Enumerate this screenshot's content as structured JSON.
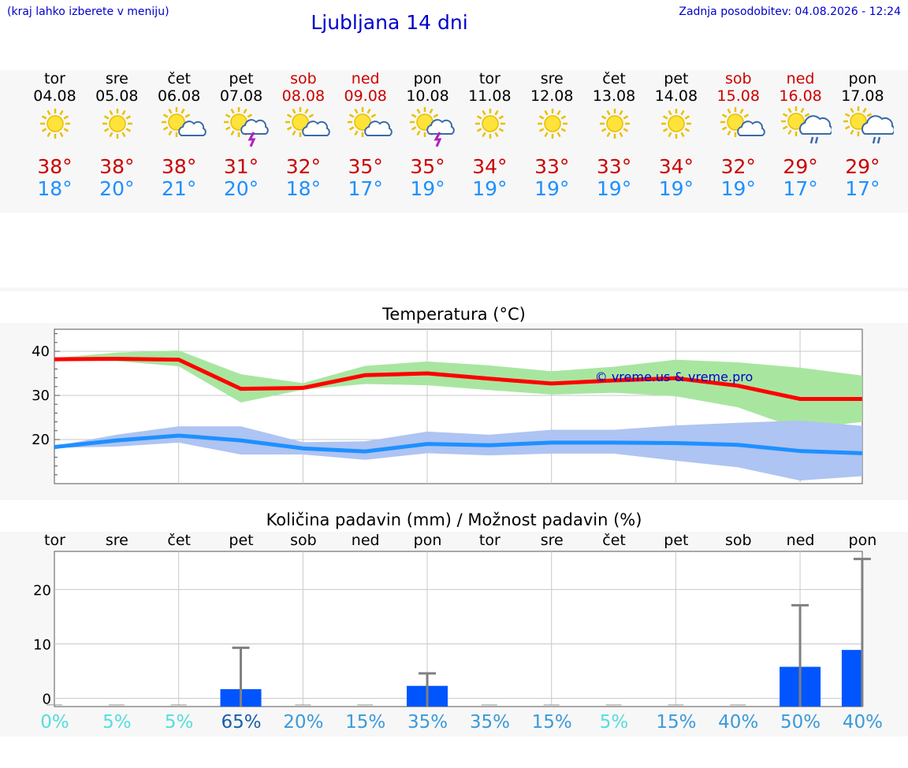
{
  "header": {
    "menu_hint": "(kraj lahko izberete v meniju)",
    "title": "Ljubljana 14 dni",
    "updated": "Zadnja posodobitev: 04.08.2026 - 12:24"
  },
  "days": [
    {
      "name": "tor",
      "date": "04.08",
      "weekend": false,
      "icon": "sun-icon",
      "max": "38°",
      "min": "18°"
    },
    {
      "name": "sre",
      "date": "05.08",
      "weekend": false,
      "icon": "sun-icon",
      "max": "38°",
      "min": "20°"
    },
    {
      "name": "čet",
      "date": "06.08",
      "weekend": false,
      "icon": "sun-cloud-icon",
      "max": "38°",
      "min": "21°"
    },
    {
      "name": "pet",
      "date": "07.08",
      "weekend": false,
      "icon": "sun-storm-icon",
      "max": "31°",
      "min": "20°"
    },
    {
      "name": "sob",
      "date": "08.08",
      "weekend": true,
      "icon": "sun-cloud-icon",
      "max": "32°",
      "min": "18°"
    },
    {
      "name": "ned",
      "date": "09.08",
      "weekend": true,
      "icon": "sun-cloud-icon",
      "max": "35°",
      "min": "17°"
    },
    {
      "name": "pon",
      "date": "10.08",
      "weekend": false,
      "icon": "sun-storm-icon",
      "max": "35°",
      "min": "19°"
    },
    {
      "name": "tor",
      "date": "11.08",
      "weekend": false,
      "icon": "sun-icon",
      "max": "34°",
      "min": "19°"
    },
    {
      "name": "sre",
      "date": "12.08",
      "weekend": false,
      "icon": "sun-icon",
      "max": "33°",
      "min": "19°"
    },
    {
      "name": "čet",
      "date": "13.08",
      "weekend": false,
      "icon": "sun-icon",
      "max": "33°",
      "min": "19°"
    },
    {
      "name": "pet",
      "date": "14.08",
      "weekend": false,
      "icon": "sun-icon",
      "max": "34°",
      "min": "19°"
    },
    {
      "name": "sob",
      "date": "15.08",
      "weekend": true,
      "icon": "sun-cloud-icon",
      "max": "32°",
      "min": "19°"
    },
    {
      "name": "ned",
      "date": "16.08",
      "weekend": true,
      "icon": "sun-rain-icon",
      "max": "29°",
      "min": "17°"
    },
    {
      "name": "pon",
      "date": "17.08",
      "weekend": false,
      "icon": "sun-rain-icon",
      "max": "29°",
      "min": "17°"
    }
  ],
  "colors": {
    "link": "#0000cc",
    "weekend": "#cc0000",
    "max_temp": "#cc0000",
    "min_temp": "#1e90ff",
    "max_line": "#ff0000",
    "min_line": "#1e90ff",
    "max_band": "#a8e6a0",
    "min_band": "#aec4f2",
    "precip_bar": "#0055ff"
  },
  "chart_data": [
    {
      "type": "line",
      "title": "Temperatura (°C)",
      "watermark": "© vreme.us & vreme.pro",
      "ylim": [
        10,
        45
      ],
      "yticks": [
        20,
        30,
        40
      ],
      "x": [
        0,
        1,
        2,
        3,
        4,
        5,
        6,
        7,
        8,
        9,
        10,
        11,
        12,
        13
      ],
      "series": [
        {
          "role": "max",
          "values": [
            38.2,
            38.3,
            38.1,
            31.5,
            31.7,
            34.6,
            35.0,
            33.8,
            32.7,
            33.4,
            33.9,
            32.2,
            29.2,
            29.2
          ],
          "band_low": [
            37.9,
            37.8,
            36.6,
            28.4,
            31.3,
            32.6,
            32.3,
            31.2,
            30.2,
            30.6,
            29.8,
            27.3,
            22.3,
            24.0
          ],
          "band_high": [
            38.5,
            39.7,
            40.2,
            34.8,
            32.8,
            36.7,
            37.7,
            36.8,
            35.5,
            36.5,
            38.1,
            37.5,
            36.3,
            34.5
          ]
        },
        {
          "role": "min",
          "values": [
            18.3,
            19.8,
            20.9,
            19.8,
            18.0,
            17.3,
            19.0,
            18.7,
            19.3,
            19.3,
            19.2,
            18.8,
            17.4,
            16.9
          ],
          "band_low": [
            18.1,
            18.4,
            19.3,
            16.6,
            16.6,
            15.4,
            16.9,
            16.4,
            16.8,
            16.8,
            15.2,
            13.7,
            10.7,
            11.7
          ],
          "band_high": [
            18.5,
            21.1,
            23.0,
            23.0,
            19.4,
            19.6,
            21.8,
            21.1,
            22.2,
            22.2,
            23.2,
            23.8,
            24.3,
            23.1
          ]
        }
      ],
      "grid": true
    },
    {
      "type": "bar",
      "title": "Količina padavin (mm) / Možnost padavin (%)",
      "categories": [
        "tor",
        "sre",
        "čet",
        "pet",
        "sob",
        "ned",
        "pon",
        "tor",
        "sre",
        "čet",
        "pet",
        "sob",
        "ned",
        "pon"
      ],
      "ylim": [
        -1.5,
        27
      ],
      "yticks": [
        0,
        10,
        20
      ],
      "values": [
        0,
        0,
        0,
        1.7,
        0,
        0,
        2.3,
        0,
        0,
        0,
        0,
        0,
        5.8,
        8.9
      ],
      "error_high": [
        0,
        0,
        0,
        9.3,
        0,
        0,
        4.6,
        0,
        0,
        0,
        0,
        0,
        17.1,
        25.6
      ],
      "chance": [
        "0%",
        "5%",
        "5%",
        "65%",
        "20%",
        "15%",
        "35%",
        "35%",
        "15%",
        "5%",
        "15%",
        "40%",
        "50%",
        "40%"
      ],
      "chance_colors": [
        "#55dddd",
        "#55dddd",
        "#55dddd",
        "#1a5ea8",
        "#3a9ad9",
        "#3a9ad9",
        "#3a9ad9",
        "#3a9ad9",
        "#3a9ad9",
        "#55dddd",
        "#3a9ad9",
        "#3a9ad9",
        "#3a9ad9",
        "#3a9ad9"
      ],
      "grid": true
    }
  ]
}
